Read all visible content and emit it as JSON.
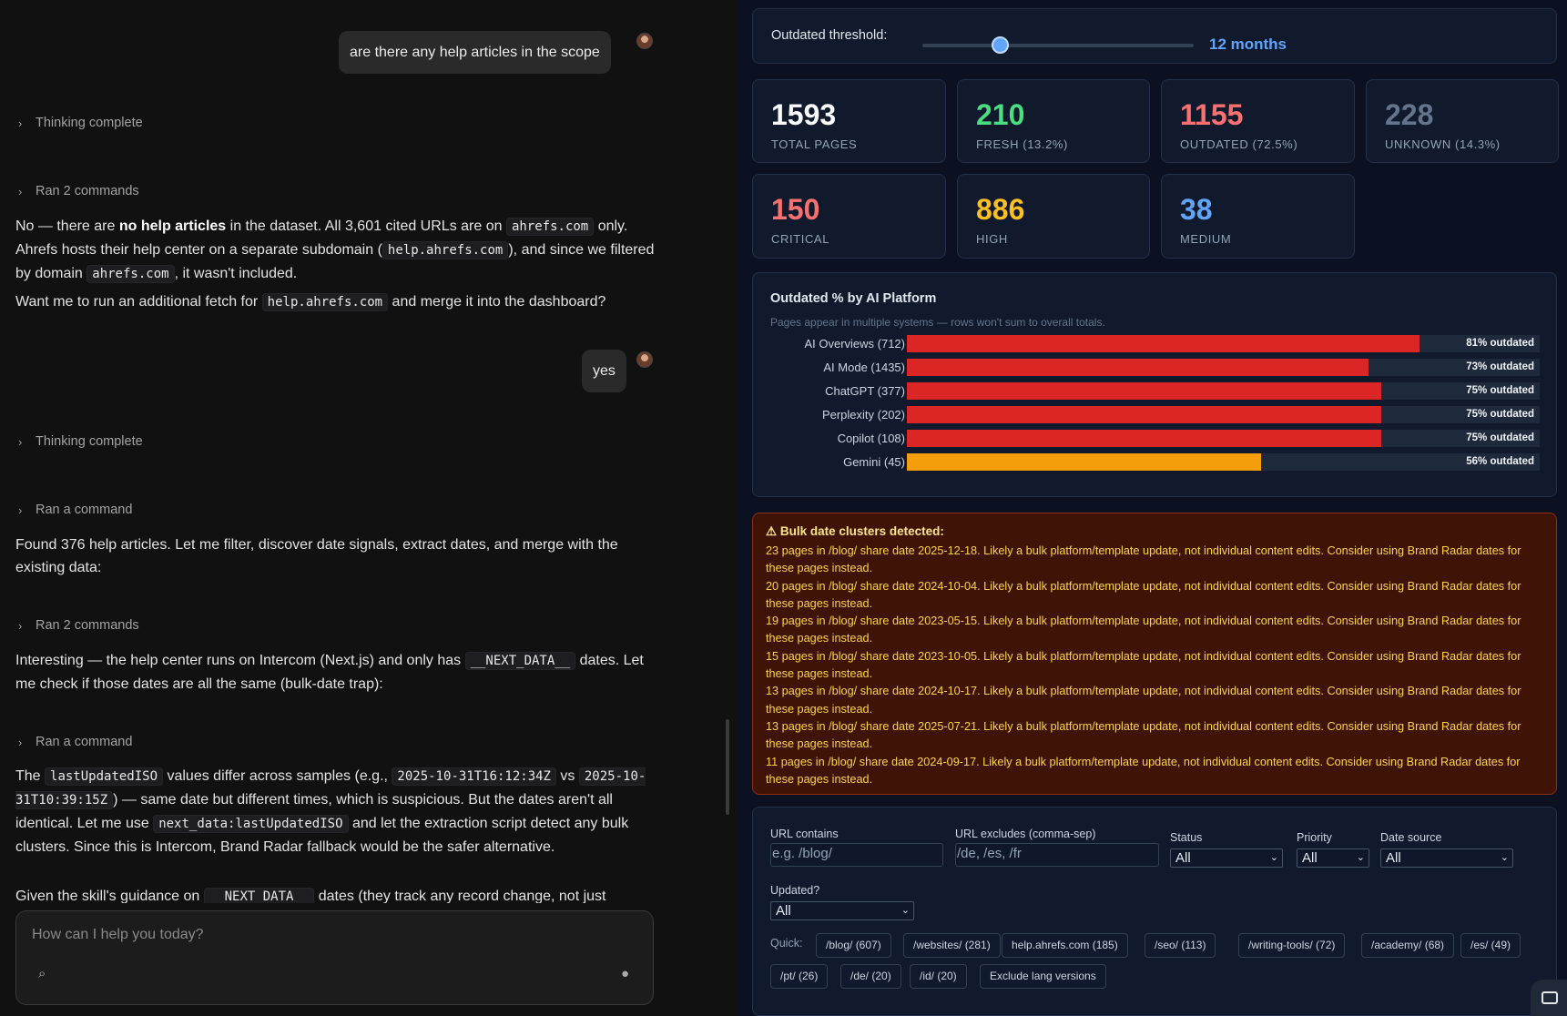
{
  "chat": {
    "messages": {
      "user1": "are there any help articles in the scope",
      "thinking1": "Thinking complete",
      "ran1": "Ran 2 commands",
      "a1_p1_pre": "No — there are ",
      "a1_p1_bold": "no help articles",
      "a1_p1_mid": " in the dataset. All 3,601 cited URLs are on ",
      "a1_p1_code1": "ahrefs.com",
      "a1_p1_mid2": " only. Ahrefs hosts their help center on a separate subdomain (",
      "a1_p1_code2": "help.ahrefs.com",
      "a1_p1_mid3": "), and since we filtered by domain ",
      "a1_p1_code3": "ahrefs.com",
      "a1_p1_end": ", it wasn't included.",
      "a1_p2_pre": "Want me to run an additional fetch for ",
      "a1_p2_code": "help.ahrefs.com",
      "a1_p2_end": " and merge it into the dashboard?",
      "user2": "yes",
      "thinking2": "Thinking complete",
      "ran2": "Ran a command",
      "a2": "Found 376 help articles. Let me filter, discover date signals, extract dates, and merge with the existing data:",
      "ran3": "Ran 2 commands",
      "a3_pre": "Interesting — the help center runs on Intercom (Next.js) and only has ",
      "a3_code": "__NEXT_DATA__",
      "a3_end": " dates. Let me check if those dates are all the same (bulk-date trap):",
      "ran4": "Ran a command",
      "a4_pre": "The ",
      "a4_code1": "lastUpdatedISO",
      "a4_mid1": " values differ across samples (e.g., ",
      "a4_code2": "2025-10-31T16:12:34Z",
      "a4_mid2": " vs ",
      "a4_code3": "2025-10-31T10:39:15Z",
      "a4_mid3": ") — same date but different times, which is suspicious. But the dates aren't all identical. Let me use ",
      "a4_code4": "next_data:lastUpdatedISO",
      "a4_end": " and let the extraction script detect any bulk clusters. Since this is Intercom, Brand Radar fallback would be the safer alternative.",
      "a5_pre": "Given the skill's guidance on ",
      "a5_code": "__NEXT_DATA__",
      "a5_end": " dates (they track any record change, not just"
    },
    "composer_placeholder": "How can I help you today?"
  },
  "dashboard": {
    "threshold": {
      "label": "Outdated threshold:",
      "value": "12 months",
      "slider_fraction": 0.29
    },
    "stats": [
      {
        "num": "1593",
        "label": "TOTAL PAGES",
        "color": "#f8fafc"
      },
      {
        "num": "210",
        "label": "FRESH (13.2%)",
        "color": "#4ade80"
      },
      {
        "num": "1155",
        "label": "OUTDATED (72.5%)",
        "color": "#f87171"
      },
      {
        "num": "228",
        "label": "UNKNOWN (14.3%)",
        "color": "#64748b"
      },
      {
        "num": "150",
        "label": "CRITICAL",
        "color": "#f87171"
      },
      {
        "num": "886",
        "label": "HIGH",
        "color": "#fbbf24"
      },
      {
        "num": "38",
        "label": "MEDIUM",
        "color": "#60a5fa"
      }
    ],
    "platform": {
      "title": "Outdated % by AI Platform",
      "subtitle": "Pages appear in multiple systems — rows won't sum to overall totals.",
      "rows": [
        {
          "name": "AI Overviews (712)",
          "pct": 81,
          "label": "81% outdated",
          "color": "#dc2626"
        },
        {
          "name": "AI Mode (1435)",
          "pct": 73,
          "label": "73% outdated",
          "color": "#dc2626"
        },
        {
          "name": "ChatGPT (377)",
          "pct": 75,
          "label": "75% outdated",
          "color": "#dc2626"
        },
        {
          "name": "Perplexity (202)",
          "pct": 75,
          "label": "75% outdated",
          "color": "#dc2626"
        },
        {
          "name": "Copilot (108)",
          "pct": 75,
          "label": "75% outdated",
          "color": "#dc2626"
        },
        {
          "name": "Gemini (45)",
          "pct": 56,
          "label": "56% outdated",
          "color": "#f59e0b"
        }
      ]
    },
    "warning": {
      "title": "⚠ Bulk date clusters detected:",
      "items": [
        "23 pages in /blog/ share date 2025-12-18. Likely a bulk platform/template update, not individual content edits. Consider using Brand Radar dates for these pages instead.",
        "20 pages in /blog/ share date 2024-10-04. Likely a bulk platform/template update, not individual content edits. Consider using Brand Radar dates for these pages instead.",
        "19 pages in /blog/ share date 2023-05-15. Likely a bulk platform/template update, not individual content edits. Consider using Brand Radar dates for these pages instead.",
        "15 pages in /blog/ share date 2023-10-05. Likely a bulk platform/template update, not individual content edits. Consider using Brand Radar dates for these pages instead.",
        "13 pages in /blog/ share date 2024-10-17. Likely a bulk platform/template update, not individual content edits. Consider using Brand Radar dates for these pages instead.",
        "13 pages in /blog/ share date 2025-07-21. Likely a bulk platform/template update, not individual content edits. Consider using Brand Radar dates for these pages instead.",
        "11 pages in /blog/ share date 2024-09-17. Likely a bulk platform/template update, not individual content edits. Consider using Brand Radar dates for these pages instead."
      ]
    },
    "filters": {
      "url_contains_label": "URL contains",
      "url_contains_placeholder": "e.g. /blog/",
      "url_excludes_label": "URL excludes (comma-sep)",
      "url_excludes_placeholder": "/de, /es, /fr",
      "status_label": "Status",
      "status_value": "All",
      "priority_label": "Priority",
      "priority_value": "All",
      "date_source_label": "Date source",
      "date_source_value": "All",
      "updated_label": "Updated?",
      "updated_value": "All",
      "quick_label": "Quick:",
      "chips": [
        "/blog/ (607)",
        "/websites/ (281)",
        "help.ahrefs.com (185)",
        "/seo/ (113)",
        "/writing-tools/ (72)",
        "/academy/ (68)",
        "/es/ (49)",
        "/pt/ (26)",
        "/de/ (20)",
        "/id/ (20)",
        "Exclude lang versions"
      ]
    }
  }
}
